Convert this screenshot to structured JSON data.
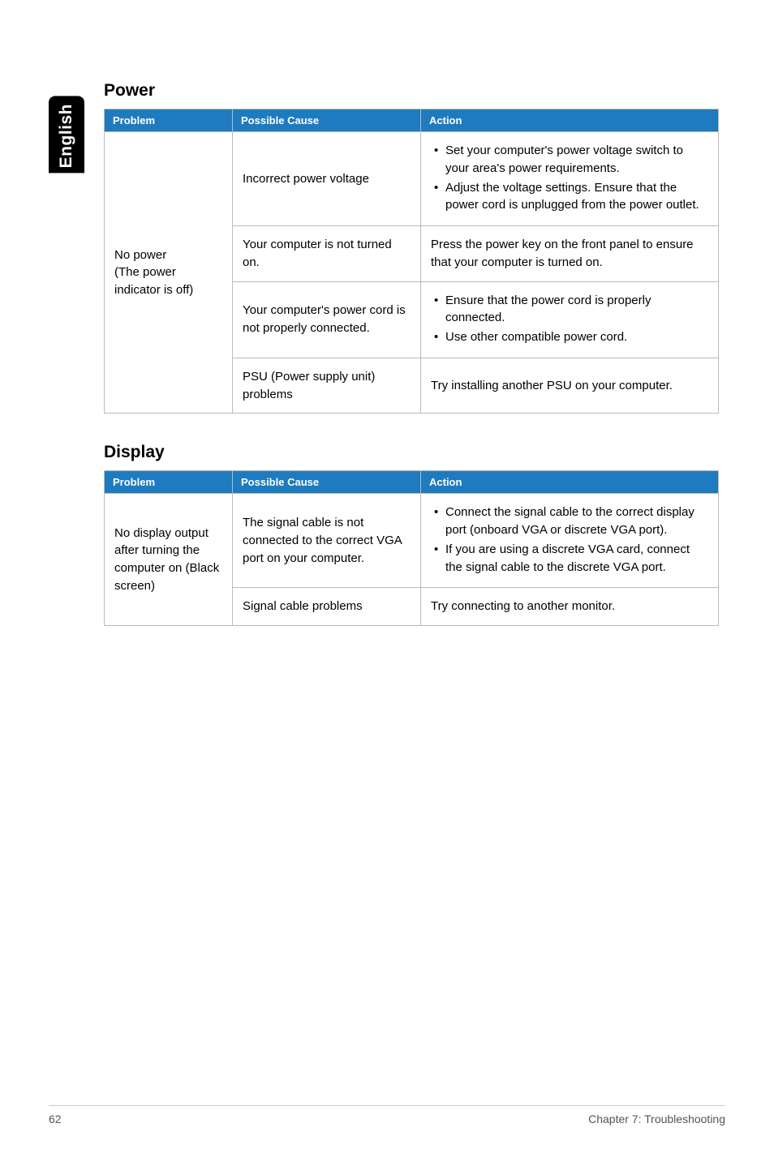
{
  "sideTab": "English",
  "sections": [
    {
      "title": "Power",
      "headers": [
        "Problem",
        "Possible Cause",
        "Action"
      ],
      "problemLabel": "No power\n(The power indicator is off)",
      "rows": [
        {
          "cause": "Incorrect power voltage",
          "actionList": [
            "Set your computer's power voltage switch to your area's power requirements.",
            "Adjust the voltage settings. Ensure that the power cord is unplugged from the power outlet."
          ]
        },
        {
          "cause": "Your computer is not turned on.",
          "actionText": "Press the power key on the front panel to ensure that your computer is turned on."
        },
        {
          "cause": "Your computer's power cord is not properly connected.",
          "actionList": [
            "Ensure that the power cord is properly connected.",
            "Use other compatible power cord."
          ]
        },
        {
          "cause": "PSU (Power supply unit) problems",
          "actionText": "Try installing another PSU on your computer."
        }
      ]
    },
    {
      "title": "Display",
      "headers": [
        "Problem",
        "Possible Cause",
        "Action"
      ],
      "problemLabel": "No display output after turning the computer on (Black screen)",
      "rows": [
        {
          "cause": "The signal cable is not connected to the correct VGA port on your computer.",
          "actionList": [
            "Connect the signal cable to the correct display port (onboard VGA or discrete VGA port).",
            "If you are using a discrete VGA card, connect the signal cable to the discrete VGA port."
          ]
        },
        {
          "cause": "Signal cable problems",
          "actionText": "Try connecting to another monitor."
        }
      ]
    }
  ],
  "footer": {
    "pageNumber": "62",
    "chapter": "Chapter 7: Troubleshooting"
  },
  "colors": {
    "headerBg": "#1f7bbf",
    "headerText": "#ffffff",
    "border": "#bbbbbb",
    "footerText": "#555555"
  }
}
